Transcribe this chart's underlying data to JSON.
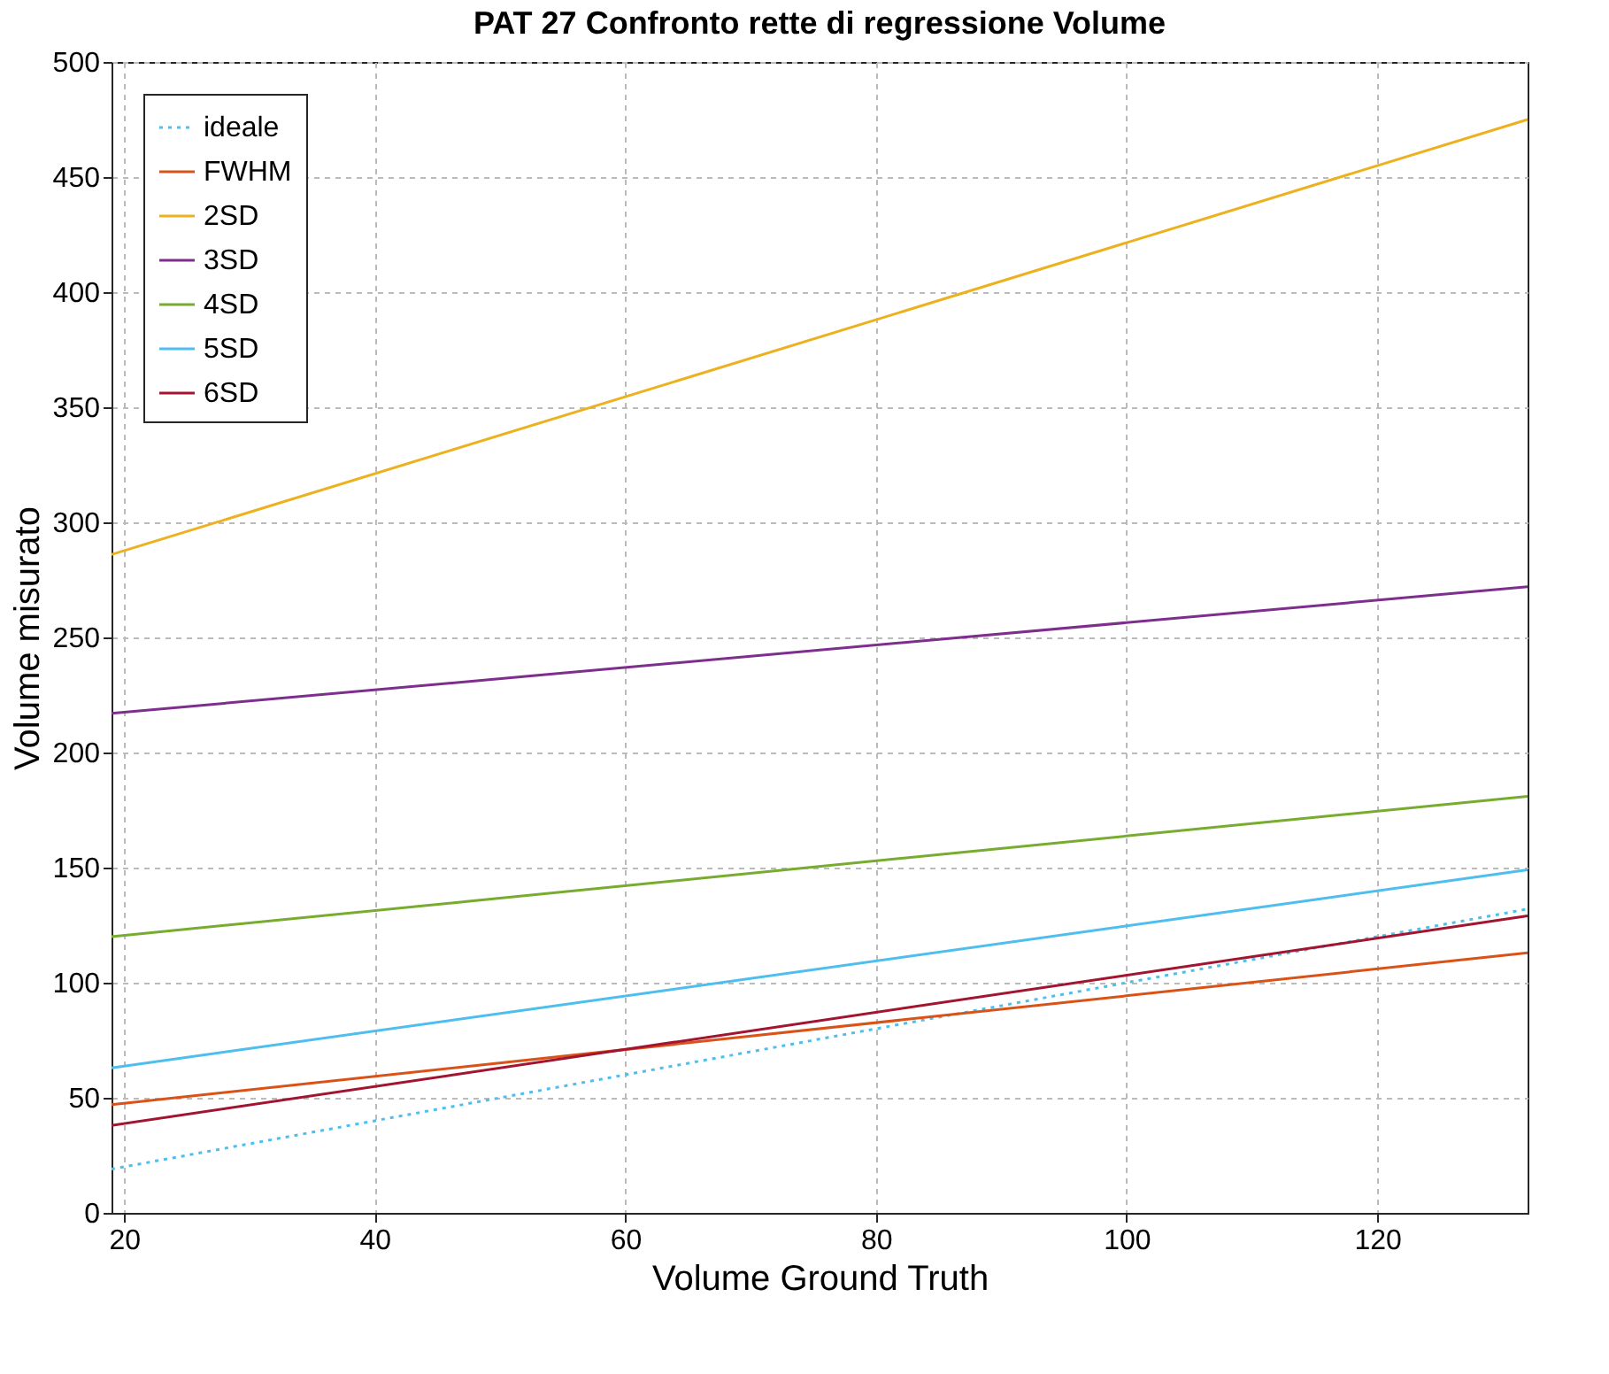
{
  "chart_data": {
    "type": "line",
    "title": "PAT 27 Confronto rette di regressione Volume",
    "xlabel": "Volume Ground Truth",
    "ylabel": "Volume misurato",
    "x": [
      19,
      132
    ],
    "series": [
      {
        "name": "ideale",
        "color": "#4dbeee",
        "values": [
          19,
          132
        ],
        "line_style": "dotted"
      },
      {
        "name": "FWHM",
        "color": "#d95319",
        "values": [
          47,
          113
        ]
      },
      {
        "name": "2SD",
        "color": "#edb120",
        "values": [
          286,
          475
        ]
      },
      {
        "name": "3SD",
        "color": "#7e2f8e",
        "values": [
          217,
          272
        ]
      },
      {
        "name": "4SD",
        "color": "#77ac30",
        "values": [
          120,
          181
        ]
      },
      {
        "name": "5SD",
        "color": "#4dbeee",
        "values": [
          63,
          149
        ]
      },
      {
        "name": "6SD",
        "color": "#a2142f",
        "values": [
          38,
          129
        ]
      }
    ],
    "xlim": [
      19,
      132
    ],
    "xticks": [
      20,
      40,
      60,
      80,
      100,
      120
    ],
    "ylim": [
      0,
      500
    ],
    "yticks": [
      0,
      50,
      100,
      150,
      200,
      250,
      300,
      350,
      400,
      450,
      500
    ],
    "grid": true,
    "legend": "top left",
    "line_style": "solid",
    "marker": "none"
  }
}
